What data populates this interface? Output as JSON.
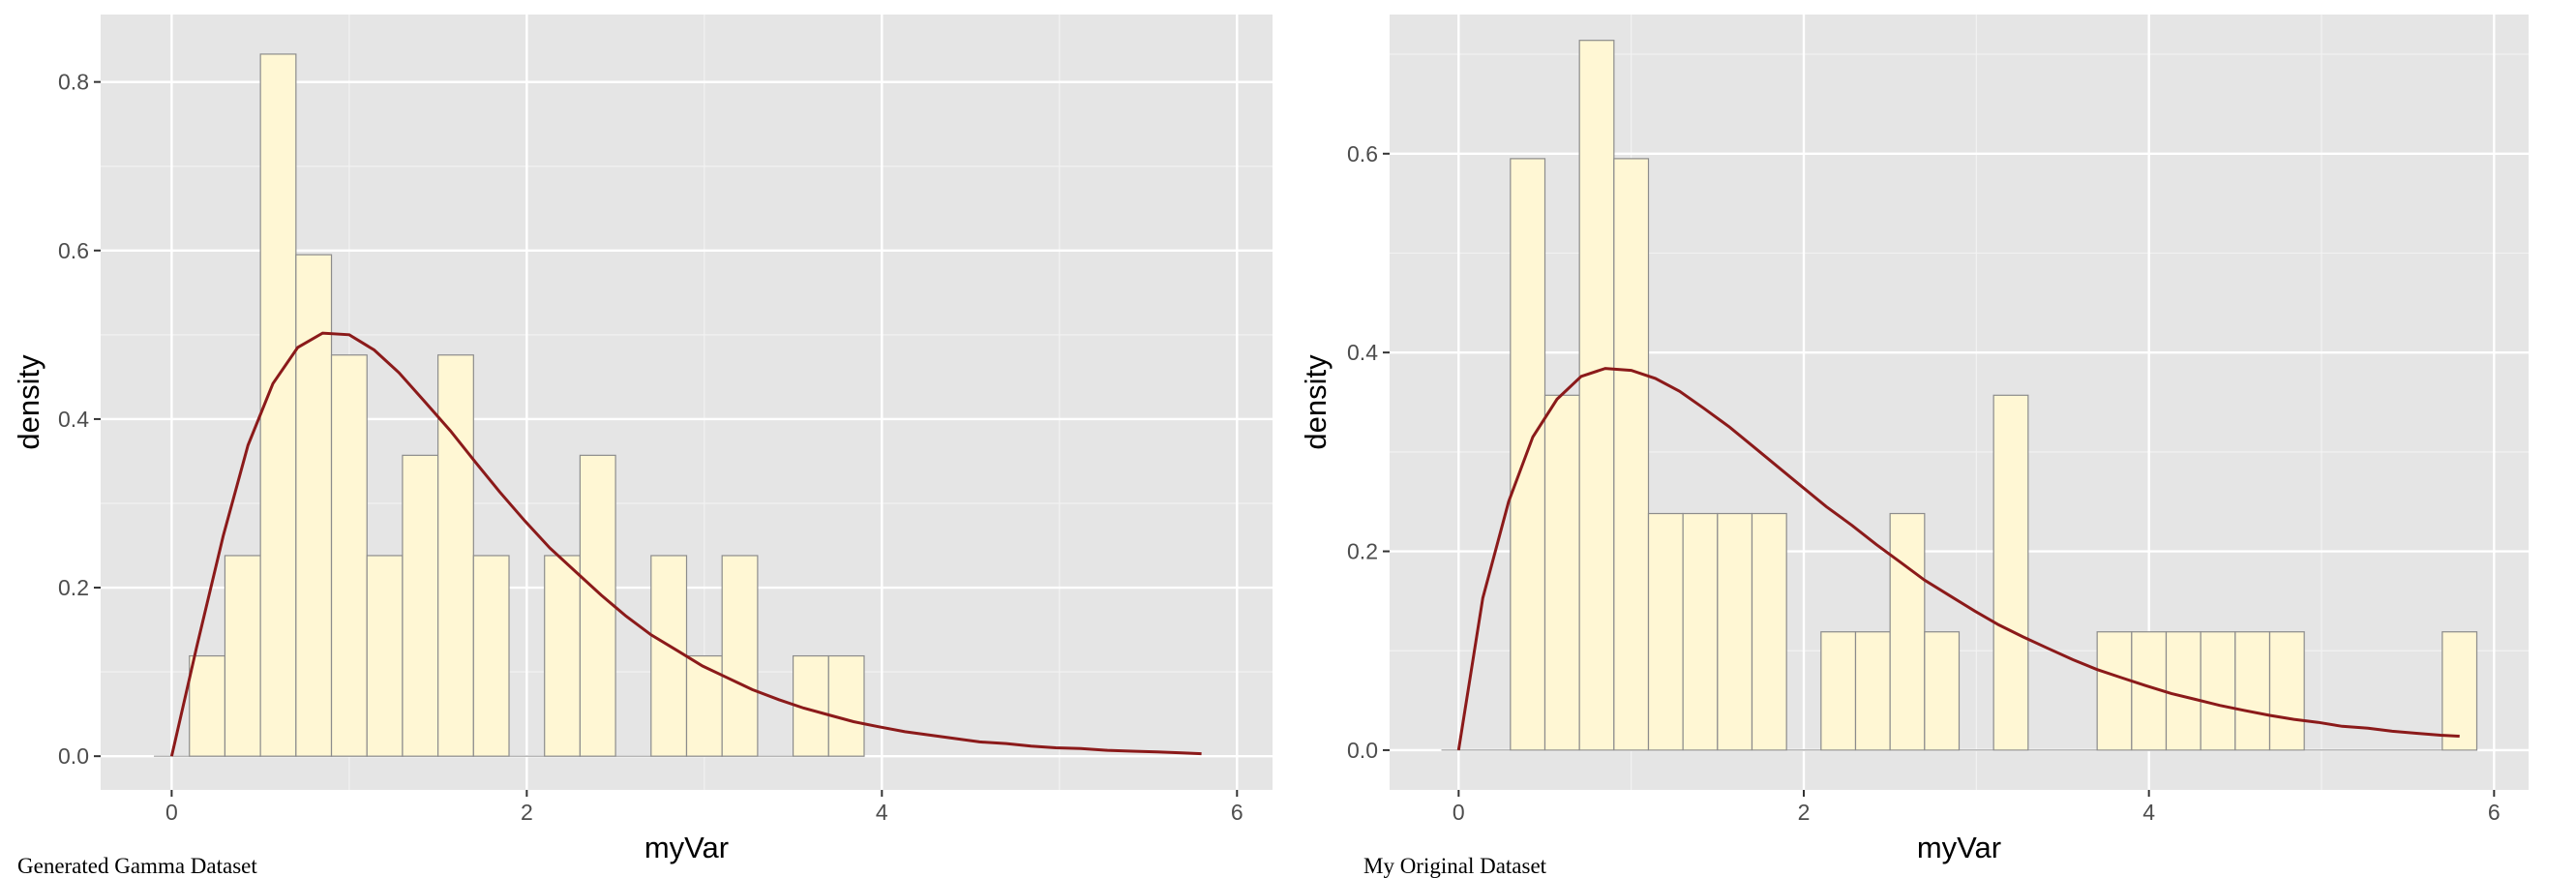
{
  "chart_data": [
    {
      "type": "bar",
      "caption": "Generated Gamma Dataset",
      "xlabel": "myVar",
      "ylabel": "density",
      "xlim": [
        -0.4,
        6.2
      ],
      "ylim": [
        -0.04,
        0.88
      ],
      "xticks": [
        0,
        2,
        4,
        6
      ],
      "yticks": [
        0.0,
        0.2,
        0.4,
        0.6,
        0.8
      ],
      "ytick_labels": [
        "0.0",
        "0.2",
        "0.4",
        "0.6",
        "0.8"
      ],
      "bin_width": 0.2,
      "bins_x_start": [
        0.1,
        0.3,
        0.5,
        0.7,
        0.9,
        1.1,
        1.3,
        1.5,
        1.7,
        1.9,
        2.1,
        2.3,
        2.5,
        2.7,
        2.9,
        3.1,
        3.3,
        3.5,
        3.7
      ],
      "densities": [
        0.119,
        0.238,
        0.833,
        0.595,
        0.476,
        0.238,
        0.357,
        0.476,
        0.238,
        0.0,
        0.238,
        0.357,
        0.0,
        0.238,
        0.119,
        0.238,
        0.0,
        0.119,
        0.119
      ],
      "curve": {
        "x": [
          0.0,
          0.14,
          0.29,
          0.43,
          0.57,
          0.71,
          0.85,
          1.0,
          1.14,
          1.28,
          1.42,
          1.57,
          1.71,
          1.85,
          1.99,
          2.13,
          2.28,
          2.42,
          2.56,
          2.7,
          2.85,
          2.99,
          3.13,
          3.27,
          3.42,
          3.56,
          3.7,
          3.84,
          3.98,
          4.13,
          4.27,
          4.41,
          4.55,
          4.7,
          4.84,
          4.98,
          5.12,
          5.27,
          5.41,
          5.55,
          5.69,
          5.8
        ],
        "y": [
          0.0,
          0.129,
          0.261,
          0.369,
          0.442,
          0.485,
          0.502,
          0.5,
          0.482,
          0.455,
          0.422,
          0.386,
          0.349,
          0.313,
          0.279,
          0.247,
          0.218,
          0.191,
          0.166,
          0.144,
          0.125,
          0.107,
          0.093,
          0.079,
          0.067,
          0.057,
          0.049,
          0.041,
          0.035,
          0.029,
          0.025,
          0.021,
          0.017,
          0.015,
          0.012,
          0.01,
          0.009,
          0.007,
          0.006,
          0.005,
          0.004,
          0.003
        ]
      }
    },
    {
      "type": "bar",
      "caption": "My Original Dataset",
      "xlabel": "myVar",
      "ylabel": "density",
      "xlim": [
        -0.4,
        6.2
      ],
      "ylim": [
        -0.04,
        0.74
      ],
      "xticks": [
        0,
        2,
        4,
        6
      ],
      "yticks": [
        0.0,
        0.2,
        0.4,
        0.6
      ],
      "ytick_labels": [
        "0.0",
        "0.2",
        "0.4",
        "0.6"
      ],
      "bin_width": 0.2,
      "bins_x_start": [
        0.3,
        0.5,
        0.7,
        0.9,
        1.1,
        1.3,
        1.5,
        1.7,
        1.9,
        2.1,
        2.3,
        2.5,
        2.7,
        2.9,
        3.1,
        3.3,
        3.5,
        3.7,
        3.9,
        4.1,
        4.3,
        4.5,
        4.7,
        4.9,
        5.1,
        5.3,
        5.5,
        5.7
      ],
      "densities": [
        0.595,
        0.357,
        0.714,
        0.595,
        0.238,
        0.238,
        0.238,
        0.238,
        0.0,
        0.119,
        0.119,
        0.238,
        0.119,
        0.0,
        0.357,
        0.0,
        0.0,
        0.119,
        0.119,
        0.119,
        0.119,
        0.119,
        0.119,
        0.0,
        0.0,
        0.0,
        0.0,
        0.119
      ],
      "curve": {
        "x": [
          0.0,
          0.14,
          0.29,
          0.43,
          0.57,
          0.71,
          0.85,
          1.0,
          1.14,
          1.28,
          1.42,
          1.57,
          1.71,
          1.85,
          1.99,
          2.13,
          2.28,
          2.42,
          2.56,
          2.7,
          2.85,
          2.99,
          3.13,
          3.27,
          3.42,
          3.56,
          3.7,
          3.84,
          3.98,
          4.13,
          4.27,
          4.41,
          4.55,
          4.7,
          4.84,
          4.98,
          5.12,
          5.27,
          5.41,
          5.55,
          5.69,
          5.8
        ],
        "y": [
          0.0,
          0.153,
          0.25,
          0.315,
          0.353,
          0.376,
          0.384,
          0.382,
          0.374,
          0.361,
          0.344,
          0.325,
          0.305,
          0.285,
          0.265,
          0.245,
          0.226,
          0.207,
          0.189,
          0.171,
          0.155,
          0.14,
          0.126,
          0.114,
          0.102,
          0.091,
          0.081,
          0.073,
          0.065,
          0.057,
          0.051,
          0.045,
          0.04,
          0.035,
          0.031,
          0.028,
          0.024,
          0.022,
          0.019,
          0.017,
          0.015,
          0.014
        ]
      }
    }
  ],
  "colors": {
    "panel_bg": "#e5e5e5",
    "grid_major": "#ffffff",
    "grid_minor": "#f2f2f2",
    "bar_fill": "#fff7d4",
    "bar_stroke": "#8c8c8c",
    "curve": "#8b1a1a",
    "tick_text": "#4d4d4d",
    "axis_title": "#000000"
  }
}
